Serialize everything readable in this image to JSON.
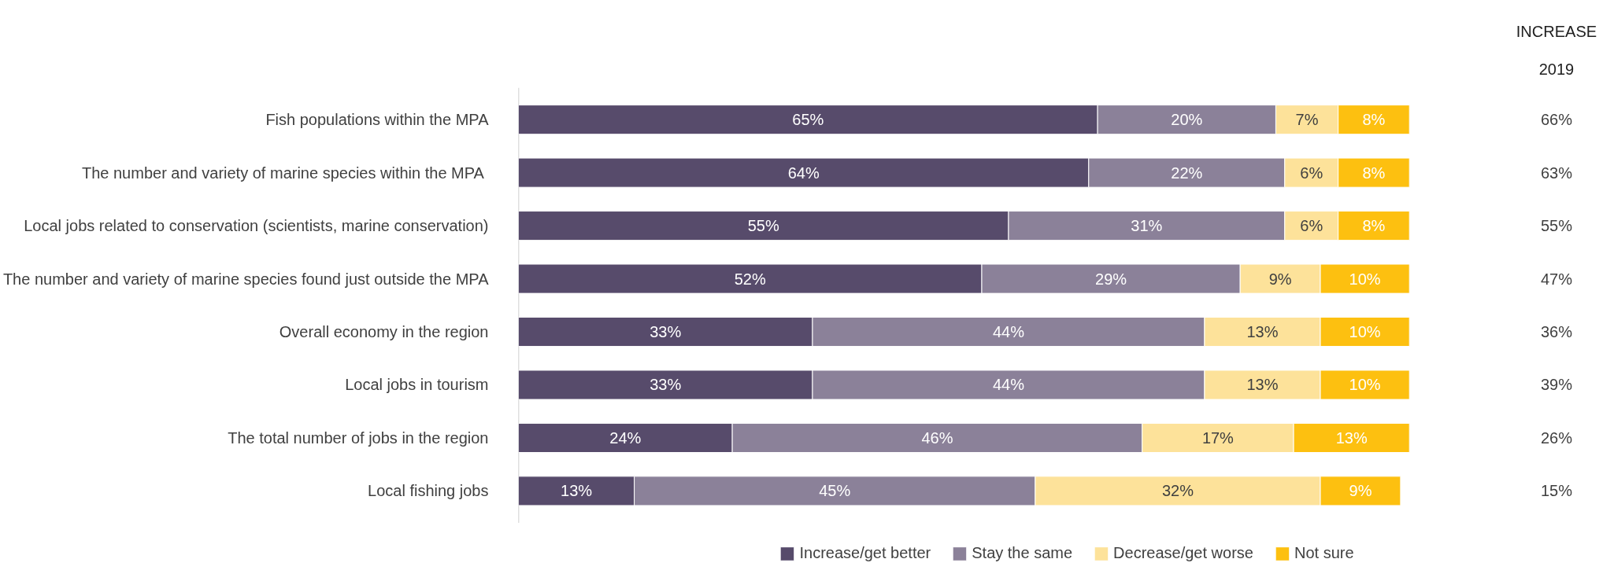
{
  "chart_data": {
    "type": "bar",
    "orientation": "horizontal",
    "stacked": true,
    "categories": [
      "Fish populations within the MPA",
      "The number and variety of marine species within the MPA ",
      "Local jobs related to conservation (scientists, marine conservation)",
      "The number and variety of marine species found just outside the MPA",
      "Overall economy in the region",
      "Local jobs in tourism",
      "The total number of jobs in the region",
      "Local fishing jobs"
    ],
    "series": [
      {
        "name": "Increase/get better",
        "color": "#574b6b",
        "values": [
          65,
          64,
          55,
          52,
          33,
          33,
          24,
          13
        ],
        "value_labels": [
          "65%",
          "64%",
          "55%",
          "52%",
          "33%",
          "33%",
          "24%",
          "13%"
        ]
      },
      {
        "name": "Stay the same",
        "color": "#8b8199",
        "values": [
          20,
          22,
          31,
          29,
          44,
          44,
          46,
          45
        ],
        "value_labels": [
          "20%",
          "22%",
          "31%",
          "29%",
          "44%",
          "44%",
          "46%",
          "45%"
        ]
      },
      {
        "name": "Decrease/get worse",
        "color": "#fde29a",
        "values": [
          7,
          6,
          6,
          9,
          13,
          13,
          17,
          32
        ],
        "value_labels": [
          "7%",
          "6%",
          "6%",
          "9%",
          "13%",
          "13%",
          "17%",
          "32%"
        ]
      },
      {
        "name": "Not sure",
        "color": "#fdc010",
        "values": [
          8,
          8,
          8,
          10,
          10,
          10,
          13,
          9
        ],
        "value_labels": [
          "8%",
          "8%",
          "8%",
          "10%",
          "10%",
          "10%",
          "13%",
          "9%"
        ]
      }
    ],
    "tick_labels": "y",
    "grid": false,
    "legend": "bottom",
    "annotations": [
      "INCREASE",
      "2019",
      "66%",
      "63%",
      "55%",
      "47%",
      "36%",
      "39%",
      "26%",
      "15%"
    ]
  }
}
